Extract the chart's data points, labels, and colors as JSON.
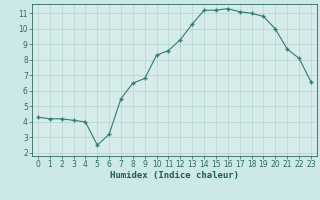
{
  "x": [
    0,
    1,
    2,
    3,
    4,
    5,
    6,
    7,
    8,
    9,
    10,
    11,
    12,
    13,
    14,
    15,
    16,
    17,
    18,
    19,
    20,
    21,
    22,
    23
  ],
  "y": [
    4.3,
    4.2,
    4.2,
    4.1,
    4.0,
    2.5,
    3.2,
    5.5,
    6.5,
    6.8,
    8.3,
    8.6,
    9.3,
    10.3,
    11.2,
    11.2,
    11.3,
    11.1,
    11.0,
    10.8,
    10.0,
    8.7,
    8.1,
    6.6
  ],
  "xlabel": "Humidex (Indice chaleur)",
  "xlim": [
    -0.5,
    23.5
  ],
  "ylim": [
    1.8,
    11.6
  ],
  "yticks": [
    2,
    3,
    4,
    5,
    6,
    7,
    8,
    9,
    10,
    11
  ],
  "xticks": [
    0,
    1,
    2,
    3,
    4,
    5,
    6,
    7,
    8,
    9,
    10,
    11,
    12,
    13,
    14,
    15,
    16,
    17,
    18,
    19,
    20,
    21,
    22,
    23
  ],
  "line_color": "#2e7d6e",
  "marker": "+",
  "marker_size": 3.5,
  "marker_lw": 1.0,
  "line_width": 0.8,
  "bg_color": "#cce8e8",
  "grid_color": "#b8d4d0",
  "tick_color": "#2e6b60",
  "spine_color": "#2e6b60",
  "axis_bg": "#d5ecea",
  "xlabel_color": "#1e5c52",
  "xlabel_fontsize": 6.5,
  "tick_fontsize": 5.5
}
